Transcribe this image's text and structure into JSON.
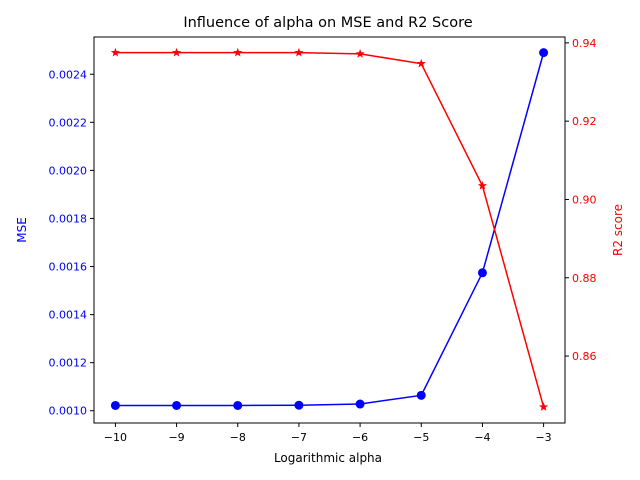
{
  "chart_data": {
    "type": "line",
    "title": "Influence of alpha on MSE and R2 Score",
    "xlabel": "Logarithmic alpha",
    "x": [
      -10,
      -9,
      -8,
      -7,
      -6,
      -5,
      -4,
      -3
    ],
    "xlim": [
      -10.35,
      -2.65
    ],
    "xticks": [
      "−10",
      "−9",
      "−8",
      "−7",
      "−6",
      "−5",
      "−4",
      "−3"
    ],
    "grid": false,
    "y_left": {
      "label": "MSE",
      "color": "#0000ff",
      "ylim": [
        0.000949,
        0.002555
      ],
      "ticks": [
        0.001,
        0.0012,
        0.0014,
        0.0016,
        0.0018,
        0.002,
        0.0022,
        0.0024
      ],
      "tick_labels": [
        "0.0010",
        "0.0012",
        "0.0014",
        "0.0016",
        "0.0018",
        "0.0020",
        "0.0022",
        "0.0024"
      ]
    },
    "y_right": {
      "label": "R2 score",
      "color": "#ff0000",
      "ylim": [
        0.8429,
        0.9415
      ],
      "ticks": [
        0.86,
        0.88,
        0.9,
        0.92,
        0.94
      ],
      "tick_labels": [
        "0.86",
        "0.88",
        "0.90",
        "0.92",
        "0.94"
      ]
    },
    "series": [
      {
        "axis": "left",
        "color": "#0000ff",
        "marker": "circle",
        "values": [
          0.001022,
          0.001022,
          0.001022,
          0.001023,
          0.001028,
          0.001064,
          0.001574,
          0.00249
        ]
      },
      {
        "axis": "right",
        "color": "#ff0000",
        "marker": "star",
        "values": [
          0.9375,
          0.9375,
          0.9375,
          0.9375,
          0.9372,
          0.9347,
          0.9035,
          0.847
        ]
      }
    ]
  }
}
